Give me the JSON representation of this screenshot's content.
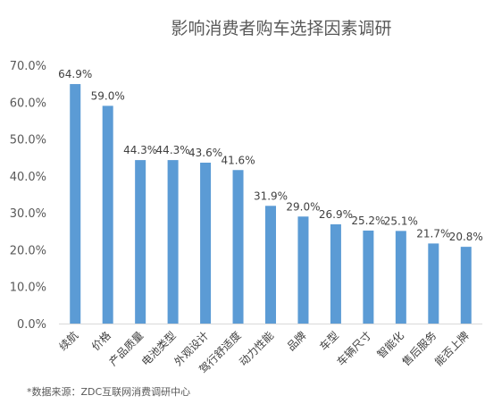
{
  "chart_data": {
    "type": "bar",
    "title": "影响消费者购车选择因素调研",
    "categories": [
      "续航",
      "价格",
      "产品质量",
      "电池类型",
      "外观设计",
      "驾行舒适度",
      "动力性能",
      "品牌",
      "车型",
      "车辆尺寸",
      "智能化",
      "售后服务",
      "能否上牌"
    ],
    "values": [
      64.9,
      59.0,
      44.3,
      44.3,
      43.6,
      41.6,
      31.9,
      29.0,
      26.9,
      25.2,
      25.1,
      21.7,
      20.8
    ],
    "data_labels": [
      "64.9%",
      "59.0%",
      "44.3%",
      "44.3%",
      "43.6%",
      "41.6%",
      "31.9%",
      "29.0%",
      "26.9%",
      "25.2%",
      "25.1%",
      "21.7%",
      "20.8%"
    ],
    "ylim": [
      0,
      70
    ],
    "y_ticks": [
      "0.0%",
      "10.0%",
      "20.0%",
      "30.0%",
      "40.0%",
      "50.0%",
      "60.0%",
      "70.0%"
    ],
    "xlabel": "",
    "ylabel": "",
    "grid": false,
    "bar_color": "#5b9bd5",
    "source_note": "*数据来源：ZDC互联网消费调研中心"
  }
}
